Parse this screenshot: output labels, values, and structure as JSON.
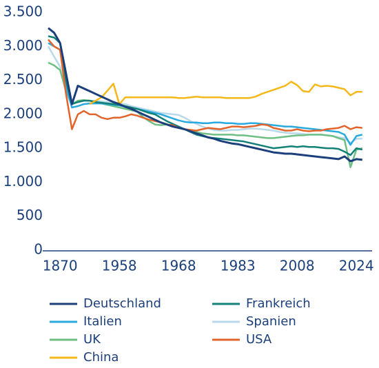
{
  "chart_data": {
    "type": "line",
    "categories": [
      null,
      null,
      "1870",
      null,
      null,
      null,
      null,
      null,
      null,
      null,
      null,
      null,
      "1958",
      null,
      null,
      null,
      null,
      null,
      null,
      null,
      null,
      null,
      "1968",
      null,
      null,
      null,
      null,
      null,
      null,
      null,
      null,
      null,
      "1983",
      null,
      null,
      null,
      null,
      null,
      null,
      null,
      null,
      null,
      "2008",
      null,
      null,
      null,
      null,
      null,
      null,
      null,
      null,
      null,
      "2024",
      null
    ],
    "ylim": [
      0,
      3500
    ],
    "yticks": [
      0,
      500,
      {
        "value": 1000,
        "label": "1.000"
      },
      {
        "value": 1500,
        "label": "1.500"
      },
      {
        "value": 2000,
        "label": "2.000"
      },
      {
        "value": 2500,
        "label": "2.500"
      },
      {
        "value": 3000,
        "label": "3.000"
      },
      {
        "value": 3500,
        "label": "3.500"
      }
    ],
    "grid": false,
    "legend": "bottom",
    "series": [
      {
        "name": "Deutschland",
        "color": "#1b3f7a",
        "values": [
          3270,
          3200,
          3050,
          2600,
          2150,
          2420,
          2380,
          2340,
          2300,
          2260,
          2220,
          2180,
          2150,
          2110,
          2080,
          2040,
          2000,
          1960,
          1920,
          1880,
          1850,
          1820,
          1800,
          1780,
          1750,
          1720,
          1690,
          1660,
          1640,
          1610,
          1590,
          1570,
          1560,
          1540,
          1520,
          1500,
          1480,
          1460,
          1440,
          1430,
          1420,
          1420,
          1410,
          1400,
          1390,
          1380,
          1370,
          1360,
          1350,
          1340,
          1380,
          1310,
          1340,
          1330
        ]
      },
      {
        "name": "Frankreich",
        "color": "#138078",
        "values": [
          3150,
          3130,
          3050,
          2500,
          2150,
          2180,
          2200,
          2200,
          2180,
          2170,
          2160,
          2150,
          2140,
          2120,
          2100,
          2080,
          2050,
          2020,
          2000,
          1950,
          1900,
          1860,
          1820,
          1780,
          1740,
          1700,
          1680,
          1660,
          1650,
          1640,
          1630,
          1620,
          1610,
          1600,
          1580,
          1560,
          1540,
          1520,
          1500,
          1510,
          1520,
          1530,
          1520,
          1530,
          1520,
          1520,
          1510,
          1500,
          1500,
          1490,
          1450,
          1400,
          1500,
          1480
        ]
      },
      {
        "name": "Italien",
        "color": "#29a9df",
        "values": [
          3050,
          3000,
          2950,
          2400,
          2100,
          2120,
          2150,
          2160,
          2160,
          2160,
          2150,
          2140,
          2130,
          2110,
          2090,
          2080,
          2060,
          2040,
          2020,
          2000,
          1970,
          1940,
          1910,
          1890,
          1880,
          1880,
          1870,
          1870,
          1880,
          1880,
          1870,
          1870,
          1860,
          1860,
          1870,
          1870,
          1860,
          1850,
          1840,
          1830,
          1820,
          1820,
          1810,
          1800,
          1790,
          1780,
          1770,
          1760,
          1750,
          1740,
          1700,
          1550,
          1680,
          1700
        ]
      },
      {
        "name": "Spanien",
        "color": "#b7d9e8",
        "values": [
          3000,
          2850,
          2700,
          2300,
          2150,
          2180,
          2200,
          2200,
          2200,
          2190,
          2180,
          2170,
          2160,
          2150,
          2120,
          2100,
          2080,
          2060,
          2040,
          2020,
          2010,
          2000,
          1990,
          1950,
          1900,
          1860,
          1820,
          1790,
          1770,
          1760,
          1760,
          1770,
          1770,
          1780,
          1790,
          1790,
          1780,
          1770,
          1760,
          1740,
          1730,
          1720,
          1720,
          1710,
          1700,
          1700,
          1700,
          1690,
          1680,
          1660,
          1650,
          1580,
          1640,
          1640
        ]
      },
      {
        "name": "UK",
        "color": "#6dbf84",
        "values": [
          2760,
          2720,
          2650,
          2350,
          2150,
          2200,
          2210,
          2200,
          2180,
          2160,
          2140,
          2120,
          2100,
          2080,
          2060,
          2040,
          1960,
          1900,
          1850,
          1840,
          1850,
          1830,
          1800,
          1780,
          1760,
          1740,
          1720,
          1710,
          1700,
          1700,
          1700,
          1700,
          1690,
          1690,
          1680,
          1670,
          1660,
          1650,
          1650,
          1660,
          1670,
          1680,
          1690,
          1690,
          1700,
          1700,
          1700,
          1690,
          1680,
          1650,
          1620,
          1220,
          1480,
          1500
        ]
      },
      {
        "name": "USA",
        "color": "#e2642b",
        "values": [
          3100,
          3000,
          2950,
          2300,
          1780,
          2000,
          2050,
          2000,
          2000,
          1950,
          1930,
          1950,
          1950,
          1970,
          2000,
          1980,
          1950,
          1920,
          1900,
          1880,
          1850,
          1840,
          1800,
          1780,
          1770,
          1760,
          1780,
          1800,
          1790,
          1780,
          1800,
          1820,
          1820,
          1810,
          1820,
          1830,
          1850,
          1840,
          1800,
          1780,
          1760,
          1760,
          1780,
          1760,
          1750,
          1760,
          1760,
          1780,
          1790,
          1800,
          1830,
          1780,
          1810,
          1800
        ]
      },
      {
        "name": "China",
        "color": "#f5b81a",
        "values": [
          null,
          null,
          null,
          null,
          null,
          null,
          null,
          2150,
          2200,
          2250,
          2350,
          2450,
          2150,
          2250,
          2250,
          2250,
          2250,
          2250,
          2250,
          2250,
          2250,
          2250,
          2240,
          2240,
          2250,
          2260,
          2250,
          2250,
          2250,
          2250,
          2240,
          2240,
          2240,
          2240,
          2240,
          2260,
          2300,
          2330,
          2360,
          2390,
          2420,
          2480,
          2430,
          2340,
          2330,
          2440,
          2410,
          2420,
          2410,
          2390,
          2370,
          2280,
          2330,
          2330
        ]
      }
    ]
  }
}
